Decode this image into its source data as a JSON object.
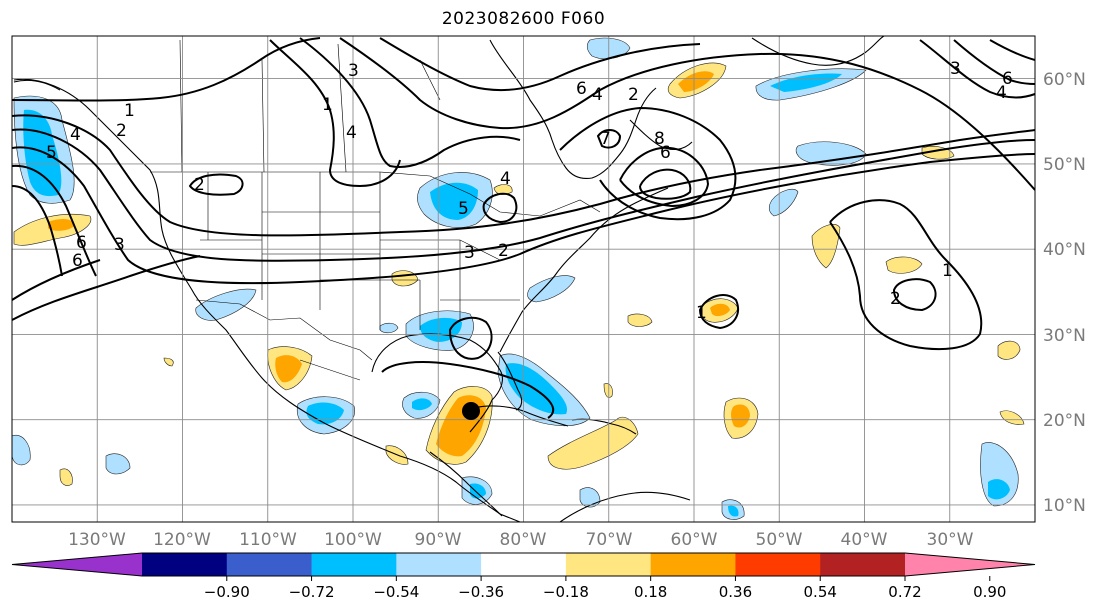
{
  "title": "2023082600 F060",
  "map": {
    "lon_range": [
      -140,
      -20
    ],
    "lat_range": [
      8,
      65
    ],
    "lon_ticks": [
      "130°W",
      "120°W",
      "110°W",
      "100°W",
      "90°W",
      "80°W",
      "70°W",
      "60°W",
      "50°W",
      "40°W",
      "30°W"
    ],
    "lat_ticks": [
      "10°N",
      "20°N",
      "30°N",
      "40°N",
      "50°N",
      "60°N"
    ],
    "grid": true,
    "marker": {
      "lon": -86.6,
      "lat": 21.0,
      "color": "#000000"
    }
  },
  "contour_labels": [
    "1",
    "2",
    "3",
    "4",
    "5",
    "6",
    "1",
    "2",
    "3",
    "4",
    "5",
    "6",
    "3",
    "4",
    "6",
    "2",
    "7",
    "8",
    "6",
    "4",
    "2",
    "1",
    "2",
    "3",
    "4",
    "6",
    "1",
    "2",
    "1",
    "4",
    "6",
    "3",
    "4",
    "1",
    "2"
  ],
  "colorbar": {
    "colors": [
      "#9932cc",
      "#000080",
      "#3a5fcd",
      "#00bfff",
      "#b0e0ff",
      "#ffffff",
      "#ffe680",
      "#ffa500",
      "#ff3c00",
      "#b22222",
      "#ff83ab"
    ],
    "ticks": [
      "−0.90",
      "−0.72",
      "−0.54",
      "−0.36",
      "−0.18",
      "0.18",
      "0.36",
      "0.54",
      "0.72",
      "0.90"
    ]
  }
}
